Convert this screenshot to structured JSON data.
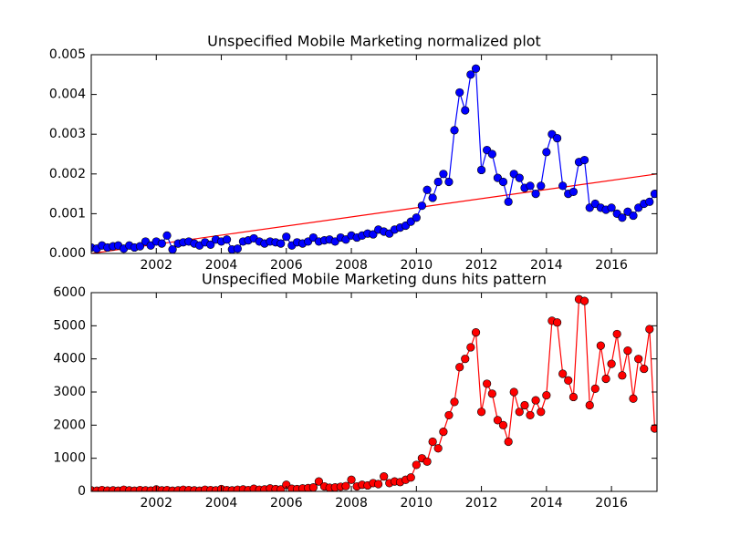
{
  "chart_data": [
    {
      "type": "line",
      "title": "Unspecified Mobile Marketing normalized plot",
      "x": [
        2000,
        2000.17,
        2000.33,
        2000.5,
        2000.67,
        2000.83,
        2001,
        2001.17,
        2001.33,
        2001.5,
        2001.67,
        2001.83,
        2002,
        2002.17,
        2002.33,
        2002.5,
        2002.67,
        2002.83,
        2003,
        2003.17,
        2003.33,
        2003.5,
        2003.67,
        2003.83,
        2004,
        2004.17,
        2004.33,
        2004.5,
        2004.67,
        2004.83,
        2005,
        2005.17,
        2005.33,
        2005.5,
        2005.67,
        2005.83,
        2006,
        2006.17,
        2006.33,
        2006.5,
        2006.67,
        2006.83,
        2007,
        2007.17,
        2007.33,
        2007.5,
        2007.67,
        2007.83,
        2008,
        2008.17,
        2008.33,
        2008.5,
        2008.67,
        2008.83,
        2009,
        2009.17,
        2009.33,
        2009.5,
        2009.67,
        2009.83,
        2010,
        2010.17,
        2010.33,
        2010.5,
        2010.67,
        2010.83,
        2011,
        2011.17,
        2011.33,
        2011.5,
        2011.67,
        2011.83,
        2012,
        2012.17,
        2012.33,
        2012.5,
        2012.67,
        2012.83,
        2013,
        2013.17,
        2013.33,
        2013.5,
        2013.67,
        2013.83,
        2014,
        2014.17,
        2014.33,
        2014.5,
        2014.67,
        2014.83,
        2015,
        2015.17,
        2015.33,
        2015.5,
        2015.67,
        2015.83,
        2016,
        2016.17,
        2016.33,
        2016.5,
        2016.67,
        2016.83,
        2017,
        2017.17,
        2017.33
      ],
      "series": [
        {
          "color": "#0000ff",
          "values": [
            0.00015,
            0.00012,
            0.0002,
            0.00015,
            0.00018,
            0.0002,
            0.00012,
            0.0002,
            0.00015,
            0.00018,
            0.0003,
            0.0002,
            0.0003,
            0.00025,
            0.00045,
            0.0001,
            0.00025,
            0.00028,
            0.0003,
            0.00025,
            0.0002,
            0.00028,
            0.00022,
            0.00035,
            0.0003,
            0.00035,
            0.0001,
            0.00012,
            0.0003,
            0.00033,
            0.00038,
            0.0003,
            0.00025,
            0.0003,
            0.00028,
            0.00025,
            0.00042,
            0.0002,
            0.00028,
            0.00025,
            0.0003,
            0.0004,
            0.0003,
            0.00033,
            0.00035,
            0.0003,
            0.0004,
            0.00035,
            0.00045,
            0.0004,
            0.00045,
            0.0005,
            0.00048,
            0.0006,
            0.00055,
            0.0005,
            0.0006,
            0.00065,
            0.0007,
            0.0008,
            0.0009,
            0.0012,
            0.0016,
            0.0014,
            0.0018,
            0.002,
            0.0018,
            0.0031,
            0.00405,
            0.0036,
            0.0045,
            0.00465,
            0.0021,
            0.0026,
            0.0025,
            0.0019,
            0.0018,
            0.0013,
            0.002,
            0.0019,
            0.00165,
            0.0017,
            0.0015,
            0.0017,
            0.00255,
            0.003,
            0.0029,
            0.0017,
            0.0015,
            0.00155,
            0.0023,
            0.00235,
            0.00115,
            0.00125,
            0.00115,
            0.0011,
            0.00115,
            0.001,
            0.0009,
            0.00105,
            0.00095,
            0.00115,
            0.00125,
            0.0013,
            0.0015
          ]
        }
      ],
      "trendline": {
        "color": "#ff0000",
        "x": [
          2000,
          2017.4
        ],
        "values": [
          0,
          0.002
        ]
      },
      "xlim": [
        2000,
        2017.4
      ],
      "xticks": [
        2002,
        2004,
        2006,
        2008,
        2010,
        2012,
        2014,
        2016
      ],
      "ylim": [
        0,
        0.005
      ],
      "yticks": [
        {
          "value": 0,
          "label": "0.000"
        },
        0.001,
        0.002,
        0.003,
        0.004,
        0.005
      ]
    },
    {
      "type": "line",
      "title": "Unspecified Mobile Marketing duns hits pattern",
      "x": [
        2000,
        2000.17,
        2000.33,
        2000.5,
        2000.67,
        2000.83,
        2001,
        2001.17,
        2001.33,
        2001.5,
        2001.67,
        2001.83,
        2002,
        2002.17,
        2002.33,
        2002.5,
        2002.67,
        2002.83,
        2003,
        2003.17,
        2003.33,
        2003.5,
        2003.67,
        2003.83,
        2004,
        2004.17,
        2004.33,
        2004.5,
        2004.67,
        2004.83,
        2005,
        2005.17,
        2005.33,
        2005.5,
        2005.67,
        2005.83,
        2006,
        2006.17,
        2006.33,
        2006.5,
        2006.67,
        2006.83,
        2007,
        2007.17,
        2007.33,
        2007.5,
        2007.67,
        2007.83,
        2008,
        2008.17,
        2008.33,
        2008.5,
        2008.67,
        2008.83,
        2009,
        2009.17,
        2009.33,
        2009.5,
        2009.67,
        2009.83,
        2010,
        2010.17,
        2010.33,
        2010.5,
        2010.67,
        2010.83,
        2011,
        2011.17,
        2011.33,
        2011.5,
        2011.67,
        2011.83,
        2012,
        2012.17,
        2012.33,
        2012.5,
        2012.67,
        2012.83,
        2013,
        2013.17,
        2013.33,
        2013.5,
        2013.67,
        2013.83,
        2014,
        2014.17,
        2014.33,
        2014.5,
        2014.67,
        2014.83,
        2015,
        2015.17,
        2015.33,
        2015.5,
        2015.67,
        2015.83,
        2016,
        2016.17,
        2016.33,
        2016.5,
        2016.67,
        2016.83,
        2017,
        2017.17,
        2017.33
      ],
      "series": [
        {
          "color": "#ff0000",
          "values": [
            30,
            20,
            40,
            25,
            30,
            20,
            50,
            30,
            20,
            40,
            30,
            25,
            60,
            30,
            40,
            20,
            30,
            50,
            40,
            30,
            20,
            50,
            40,
            30,
            70,
            40,
            30,
            50,
            60,
            40,
            80,
            50,
            60,
            90,
            70,
            60,
            200,
            80,
            70,
            90,
            100,
            120,
            300,
            150,
            110,
            120,
            140,
            160,
            350,
            150,
            200,
            180,
            250,
            220,
            450,
            250,
            300,
            280,
            350,
            420,
            800,
            1000,
            900,
            1500,
            1300,
            1800,
            2300,
            2700,
            3750,
            4000,
            4350,
            4800,
            2400,
            3250,
            2950,
            2150,
            2000,
            1500,
            3000,
            2400,
            2600,
            2300,
            2750,
            2400,
            2900,
            5150,
            5100,
            3550,
            3350,
            2850,
            5800,
            5750,
            2600,
            3100,
            4400,
            3400,
            3850,
            4750,
            3500,
            4250,
            2800,
            4000,
            3700,
            4900,
            1900
          ]
        }
      ],
      "xlim": [
        2000,
        2017.4
      ],
      "xticks": [
        2002,
        2004,
        2006,
        2008,
        2010,
        2012,
        2014,
        2016
      ],
      "ylim": [
        0,
        6000
      ],
      "yticks": [
        0,
        1000,
        2000,
        3000,
        4000,
        5000,
        6000
      ]
    }
  ]
}
